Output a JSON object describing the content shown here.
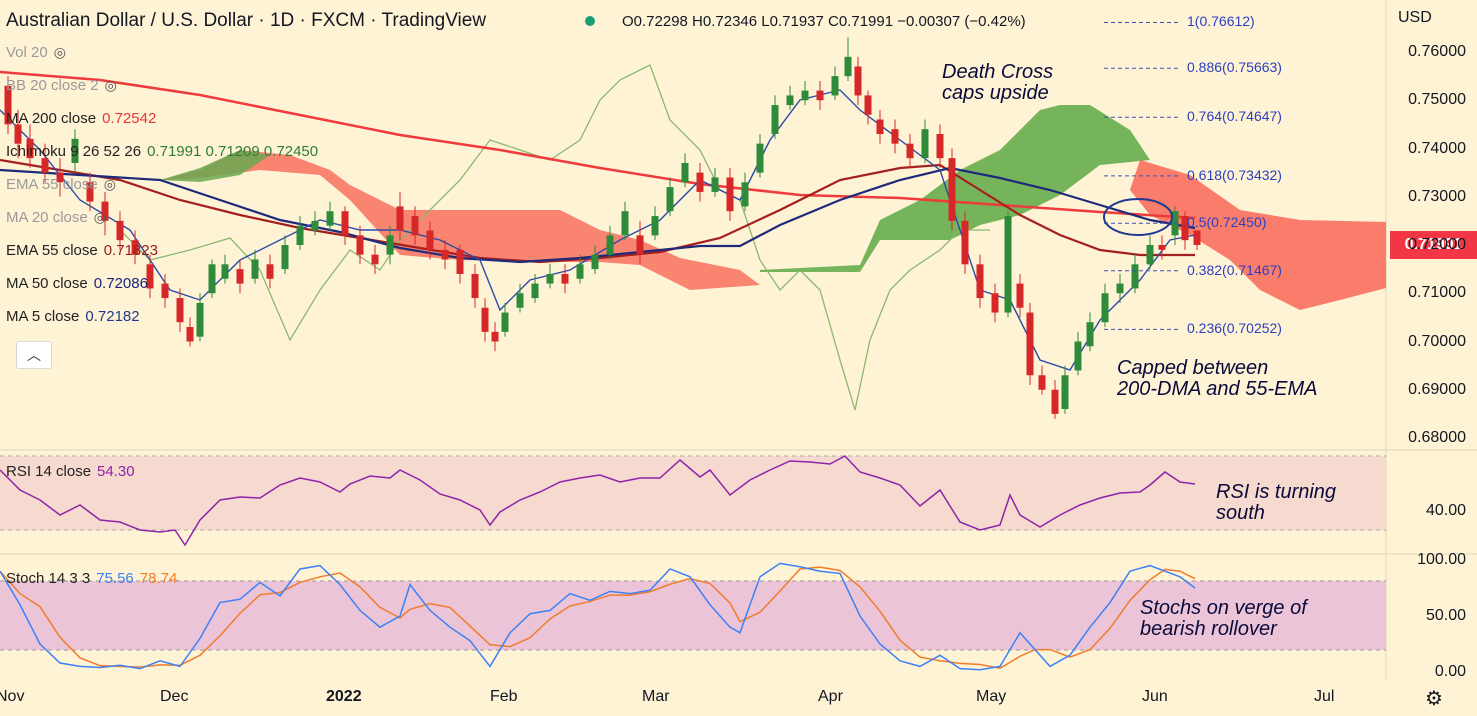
{
  "header": {
    "title": "Australian Dollar / U.S. Dollar · 1D · FXCM · TradingView",
    "ohlc": "O0.72298 H0.72346 L0.71937 C0.71991 −0.00307 (−0.42%)"
  },
  "legend": [
    {
      "label": "Vol 20",
      "value": "",
      "color": "#999999"
    },
    {
      "label": "BB 20 close 2",
      "value": "",
      "color": "#999999"
    },
    {
      "label": "MA 200 close",
      "value": "0.72542",
      "color": "#e53935"
    },
    {
      "label": "Ichimoku 9 26 52 26",
      "value": "0.71991  0.71209  0.72450",
      "color": "#2e7d32"
    },
    {
      "label": "EMA 55 close",
      "value": "",
      "color": "#999999"
    },
    {
      "label": "MA 20 close",
      "value": "",
      "color": "#999999"
    },
    {
      "label": "EMA 55 close",
      "value": "0.71823",
      "color": "#9b1c1c"
    },
    {
      "label": "MA 50 close",
      "value": "0.72086",
      "color": "#1a237e"
    },
    {
      "label": "MA 5 close",
      "value": "0.72182",
      "color": "#1e3a8a"
    }
  ],
  "currency": "USD",
  "last_price": "0.71991",
  "price_axis": [
    "0.76000",
    "0.75000",
    "0.74000",
    "0.73000",
    "0.72000",
    "0.71000",
    "0.70000",
    "0.69000",
    "0.68000"
  ],
  "rsi": {
    "label": "RSI 14 close",
    "value": "54.30",
    "axis": [
      "40.00"
    ]
  },
  "stoch": {
    "label": "Stoch 14 3 3",
    "k": "75.56",
    "d": "78.74",
    "axis": [
      "100.00",
      "50.00",
      "0.00"
    ]
  },
  "x_axis": [
    "Nov",
    "Dec",
    "2022",
    "Feb",
    "Mar",
    "Apr",
    "May",
    "Jun",
    "Jul"
  ],
  "fib_levels": [
    {
      "label": "1(0.76612)",
      "price": 0.76612
    },
    {
      "label": "0.886(0.75663)",
      "price": 0.75663
    },
    {
      "label": "0.764(0.74647)",
      "price": 0.74647
    },
    {
      "label": "0.618(0.73432)",
      "price": 0.73432
    },
    {
      "label": "0.5(0.72450)",
      "price": 0.7245
    },
    {
      "label": "0.382(0.71467)",
      "price": 0.71467
    },
    {
      "label": "0.236(0.70252)",
      "price": 0.70252
    }
  ],
  "annotations": {
    "death_cross": [
      "Death Cross",
      "caps upside"
    ],
    "capped": [
      "Capped between",
      "200-DMA and 55-EMA"
    ],
    "rsi_note": [
      "RSI is turning",
      "south"
    ],
    "stoch_note": [
      "Stochs on verge of",
      "bearish rollover"
    ]
  },
  "colors": {
    "background": "#fff3d6",
    "up": "#2e8b3a",
    "down": "#d62828",
    "ma200": "#ef3b3b",
    "ema55": "#a3201e",
    "ma50": "#1f2a7a",
    "rsi": "#8e24aa",
    "stoch_k": "#3b82f6",
    "stoch_d": "#f07c2a"
  },
  "chart_data": {
    "type": "line",
    "title": "Australian Dollar / U.S. Dollar · 1D · FXCM",
    "x": [
      "Nov",
      "Dec",
      "2022",
      "Feb",
      "Mar",
      "Apr",
      "May",
      "Jun"
    ],
    "series": [
      {
        "name": "Close",
        "values": [
          0.737,
          0.705,
          0.726,
          0.7,
          0.727,
          0.756,
          0.708,
          0.72
        ]
      },
      {
        "name": "MA 200 close",
        "values": [
          0.752,
          0.743,
          0.737,
          0.734,
          0.73,
          0.728,
          0.727,
          0.725
        ]
      },
      {
        "name": "EMA 55 close",
        "values": [
          0.733,
          0.726,
          0.722,
          0.718,
          0.719,
          0.733,
          0.728,
          0.718
        ]
      },
      {
        "name": "MA 50 close",
        "values": [
          0.735,
          0.73,
          0.724,
          0.719,
          0.718,
          0.726,
          0.735,
          0.721
        ]
      }
    ],
    "ylim": [
      0.68,
      0.765
    ]
  }
}
